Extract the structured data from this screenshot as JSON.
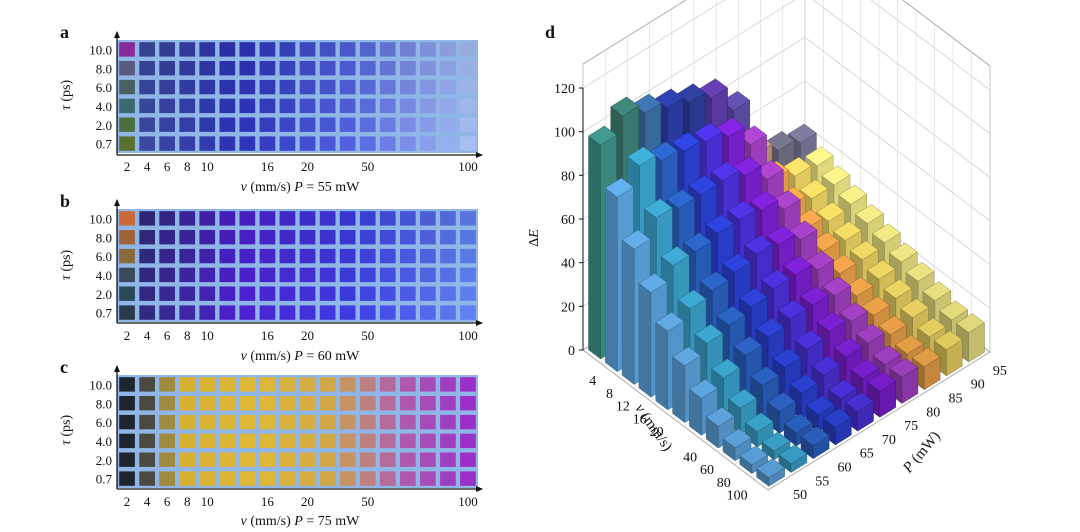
{
  "figure": {
    "panels": [
      {
        "label": "a",
        "xlabel_var": "v",
        "xlabel_unit": " (mm/s) ",
        "xlabel_param": "P",
        "xlabel_value": " = 55 mW",
        "ylabel_var": "τ",
        "ylabel_unit": " (ps)"
      },
      {
        "label": "b",
        "xlabel_var": "v",
        "xlabel_unit": " (mm/s) ",
        "xlabel_param": "P",
        "xlabel_value": " = 60 mW",
        "ylabel_var": "τ",
        "ylabel_unit": " (ps)"
      },
      {
        "label": "c",
        "xlabel_var": "v",
        "xlabel_unit": " (mm/s) ",
        "xlabel_param": "P",
        "xlabel_value": " = 75 mW",
        "ylabel_var": "τ",
        "ylabel_unit": " (ps)"
      }
    ],
    "panel_d": {
      "label": "d",
      "zlabel_prefix": "Δ",
      "zlabel_var": "E",
      "xlabel_var": "v",
      "xlabel_unit": " (mm/s)",
      "ylabel_var": "P",
      "ylabel_unit": " (mW)"
    }
  },
  "chart_data": [
    {
      "type": "heatmap",
      "panel": "a",
      "title": "",
      "xlabel": "v (mm/s) P = 55 mW",
      "ylabel": "τ (ps)",
      "x_ticks": [
        "2",
        "4",
        "6",
        "8",
        "10",
        "16",
        "20",
        "50",
        "100"
      ],
      "y_ticks": [
        "10.0",
        "8.0",
        "6.0",
        "4.0",
        "2.0",
        "0.7"
      ],
      "columns": 18,
      "rows": 6,
      "color_scale": [
        "#3a4a90",
        "#2a2fb0",
        "#4f5fd6",
        "#9fb4e8"
      ],
      "first_column_colors": [
        "#8a2a9a",
        "#5a5a80",
        "#4a6060",
        "#3a6a70",
        "#4a7040",
        "#5a7030"
      ],
      "background": "#8fb6e6"
    },
    {
      "type": "heatmap",
      "panel": "b",
      "title": "",
      "xlabel": "v (mm/s) P = 60 mW",
      "ylabel": "τ (ps)",
      "x_ticks": [
        "2",
        "4",
        "6",
        "8",
        "10",
        "16",
        "20",
        "50",
        "100"
      ],
      "y_ticks": [
        "10.0",
        "8.0",
        "6.0",
        "4.0",
        "2.0",
        "0.7"
      ],
      "columns": 18,
      "rows": 6,
      "color_scale": [
        "#2a2a6a",
        "#4a1ec8",
        "#3a3ad8",
        "#5a7ae6"
      ],
      "first_column_colors": [
        "#c86a3a",
        "#a0643a",
        "#8a6a3a",
        "#3a4a5a",
        "#2a4a5a",
        "#2a3a4a"
      ],
      "background": "#8fb6e6"
    },
    {
      "type": "heatmap",
      "panel": "c",
      "title": "",
      "xlabel": "v (mm/s) P = 75 mW",
      "ylabel": "τ (ps)",
      "x_ticks": [
        "2",
        "4",
        "6",
        "8",
        "10",
        "16",
        "20",
        "50",
        "100"
      ],
      "y_ticks": [
        "10.0",
        "8.0",
        "6.0",
        "4.0",
        "2.0",
        "0.7"
      ],
      "columns": 18,
      "rows": 6,
      "color_scale": [
        "#1e2530",
        "#5a5040",
        "#c8a028",
        "#e0b830",
        "#b050a8",
        "#8a30c8"
      ],
      "background": "#8fb6e6"
    },
    {
      "type": "bar3d",
      "panel": "d",
      "title": "",
      "zlabel": "ΔE",
      "xlabel": "v (mm/s)",
      "ylabel": "P (mW)",
      "z_ticks": [
        "0",
        "20",
        "40",
        "60",
        "80",
        "100",
        "120"
      ],
      "zlim": [
        0,
        120
      ],
      "v_ticks": [
        "4",
        "8",
        "12",
        "16",
        "20",
        "40",
        "60",
        "80",
        "100"
      ],
      "P_ticks": [
        "50",
        "55",
        "60",
        "65",
        "70",
        "75",
        "80",
        "85",
        "90",
        "95"
      ],
      "P_values": [
        50,
        55,
        60,
        65,
        70,
        75,
        80,
        85,
        90,
        95
      ],
      "series_colors": [
        "#5aa0d8",
        "#3aa0c8",
        "#2a60c0",
        "#2a40d0",
        "#4a30d8",
        "#7a20d0",
        "#a040c0",
        "#e8a048",
        "#e8d060",
        "#e8e080"
      ],
      "back_row_colors": [
        "#3a8a80",
        "#3a7a70",
        "#3a6aa0",
        "#2a3aa0",
        "#2a3a90",
        "#5a3aa0",
        "#5a4aa0",
        "#b09070",
        "#6a6a80",
        "#707090"
      ],
      "series_values": [
        [
          98,
          80,
          62,
          48,
          36,
          26,
          17,
          10,
          6,
          4
        ],
        [
          105,
          88,
          70,
          54,
          40,
          30,
          20,
          12,
          7,
          4
        ],
        [
          100,
          84,
          68,
          54,
          42,
          32,
          24,
          16,
          10,
          6
        ],
        [
          96,
          82,
          68,
          56,
          44,
          34,
          26,
          18,
          12,
          8
        ],
        [
          92,
          80,
          68,
          56,
          46,
          36,
          28,
          20,
          14,
          9
        ],
        [
          88,
          76,
          64,
          54,
          44,
          36,
          28,
          22,
          16,
          12
        ],
        [
          76,
          66,
          56,
          48,
          40,
          32,
          26,
          20,
          16,
          12
        ],
        [
          66,
          58,
          50,
          44,
          38,
          32,
          26,
          22,
          18,
          14
        ],
        [
          60,
          52,
          46,
          40,
          36,
          32,
          28,
          24,
          20,
          16
        ],
        [
          56,
          50,
          46,
          42,
          38,
          34,
          30,
          26,
          22,
          18
        ]
      ]
    }
  ]
}
